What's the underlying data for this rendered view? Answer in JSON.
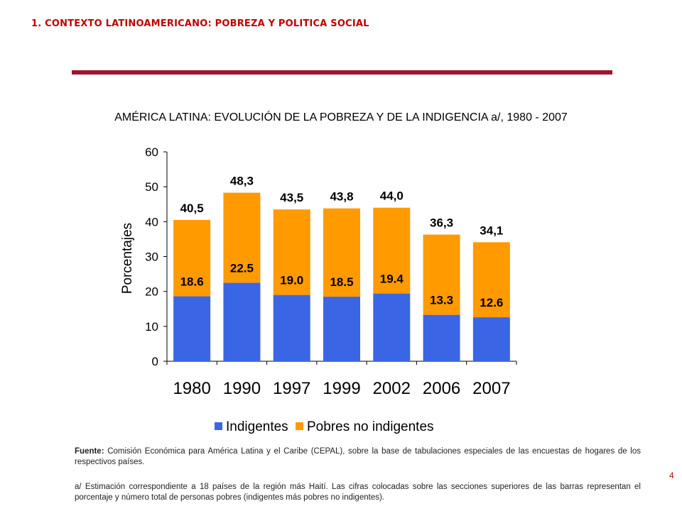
{
  "header": {
    "section_title": "1. CONTEXTO LATINOAMERICANO: POBREZA Y POLITICA SOCIAL",
    "rule_color": "#a0152b"
  },
  "chart_data": {
    "type": "bar",
    "stacked": true,
    "title": "AMÉRICA LATINA: EVOLUCIÓN DE LA POBREZA Y DE LA INDIGENCIA a/, 1980 - 2007",
    "ylabel": "Porcentajes",
    "xlabel": "",
    "ylim": [
      0,
      60
    ],
    "yticks": [
      0,
      10,
      20,
      30,
      40,
      50,
      60
    ],
    "categories": [
      "1980",
      "1990",
      "1997",
      "1999",
      "2002",
      "2006",
      "2007"
    ],
    "series": [
      {
        "name": "Indigentes",
        "color": "#3a66e6",
        "values": [
          18.6,
          22.5,
          19.0,
          18.5,
          19.4,
          13.3,
          12.6
        ],
        "labels": [
          "18.6",
          "22.5",
          "19.0",
          "18.5",
          "19.4",
          "13.3",
          "12.6"
        ]
      },
      {
        "name": "Pobres no indigentes",
        "color": "#ff9a00",
        "values": [
          21.9,
          25.8,
          24.5,
          25.3,
          24.6,
          23.0,
          21.5
        ]
      }
    ],
    "totals": [
      40.5,
      48.3,
      43.5,
      43.8,
      44.0,
      36.3,
      34.1
    ],
    "total_labels": [
      "40,5",
      "48,3",
      "43,5",
      "43,8",
      "44,0",
      "36,3",
      "34,1"
    ],
    "grid": false,
    "legend_position": "bottom"
  },
  "footer": {
    "source_label": "Fuente:",
    "source_text": "Comisión Económica para América Latina y el Caribe (CEPAL), sobre la base de tabulaciones especiales de las encuestas de hogares de los respectivos países.",
    "note_text": "a/ Estimación correspondiente a 18 países de la región más Haití. Las cifras colocadas sobre las secciones superiores de las barras representan el porcentaje y número total de personas pobres (indigentes más pobres no indigentes).",
    "page_number": "4"
  }
}
